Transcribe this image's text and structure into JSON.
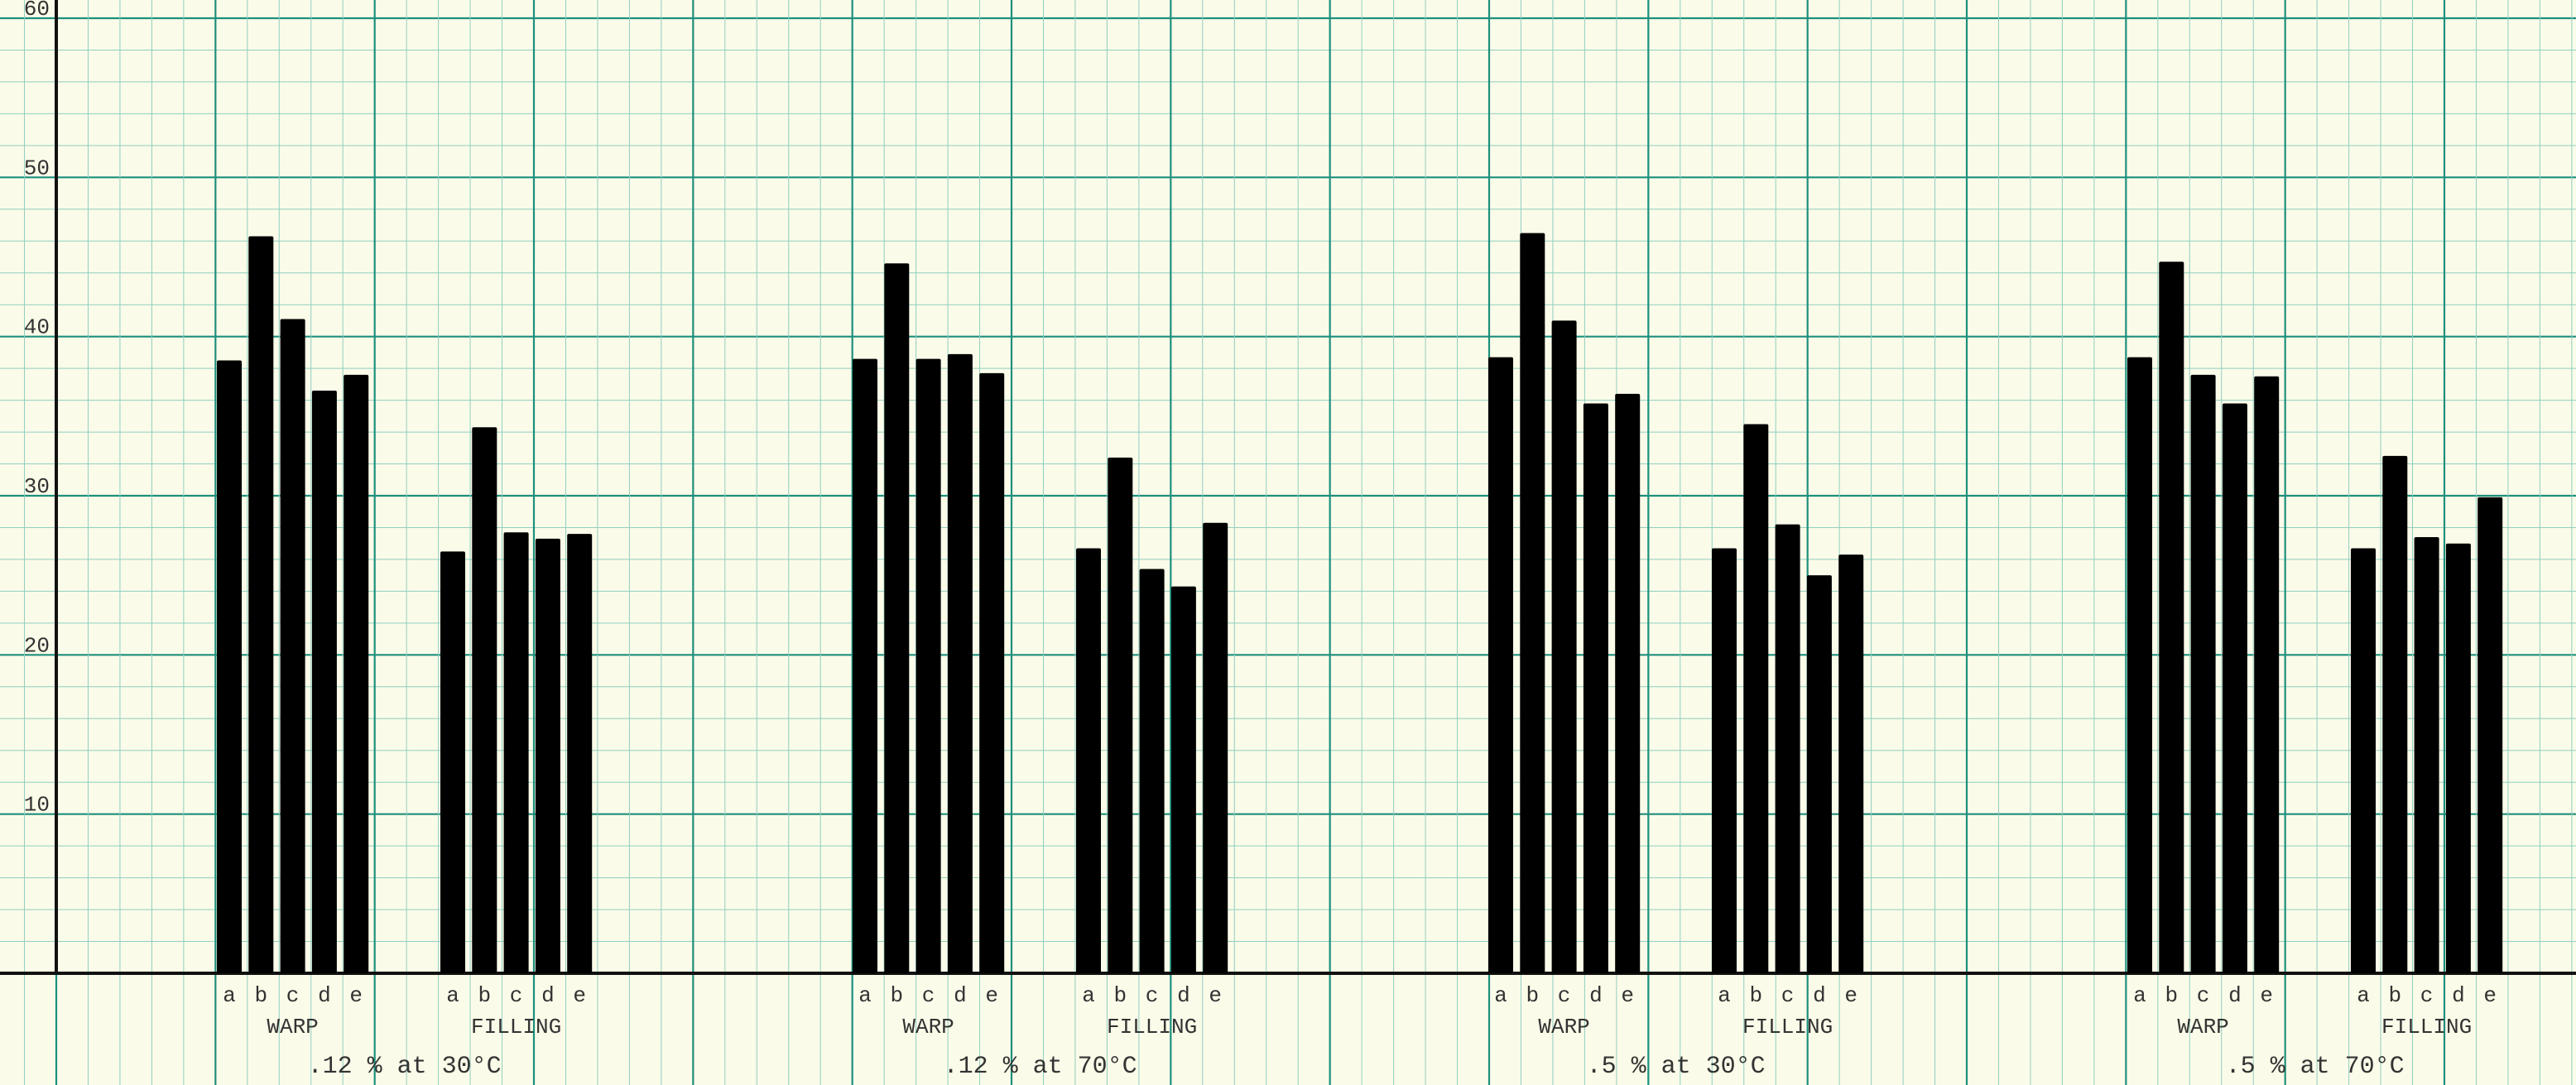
{
  "chart_data": {
    "type": "bar",
    "title": "",
    "xlabel": "",
    "ylabel": "",
    "ylim": [
      0,
      60
    ],
    "y_ticks": [
      "10",
      "20",
      "30",
      "40",
      "50",
      "60"
    ],
    "grid": true,
    "colors": {
      "bar": "#000000",
      "grid_minor": "#8fcfc0",
      "grid_major": "#1d8f7d",
      "paper": "#fbfbe9",
      "axis": "#111111"
    },
    "groups": [
      {
        "label": ".12 % at 30°C",
        "subgroups": [
          {
            "label": "WARP",
            "categories": [
              "a",
              "b",
              "c",
              "d",
              "e"
            ],
            "values": [
              38.5,
              46.3,
              41.1,
              36.6,
              37.6
            ]
          },
          {
            "label": "FILLING",
            "categories": [
              "a",
              "b",
              "c",
              "d",
              "e"
            ],
            "values": [
              26.5,
              34.3,
              27.7,
              27.3,
              27.6
            ]
          }
        ]
      },
      {
        "label": ".12 % at 70°C",
        "subgroups": [
          {
            "label": "WARP",
            "categories": [
              "a",
              "b",
              "c",
              "d",
              "e"
            ],
            "values": [
              38.6,
              44.6,
              38.6,
              38.9,
              37.7
            ]
          },
          {
            "label": "FILLING",
            "categories": [
              "a",
              "b",
              "c",
              "d",
              "e"
            ],
            "values": [
              26.7,
              32.4,
              25.4,
              24.3,
              28.3
            ]
          }
        ]
      },
      {
        "label": ".5 % at 30°C",
        "subgroups": [
          {
            "label": "WARP",
            "categories": [
              "a",
              "b",
              "c",
              "d",
              "e"
            ],
            "values": [
              38.7,
              46.5,
              41.0,
              35.8,
              36.4
            ]
          },
          {
            "label": "FILLING",
            "categories": [
              "a",
              "b",
              "c",
              "d",
              "e"
            ],
            "values": [
              26.7,
              34.5,
              28.2,
              25.0,
              26.3
            ]
          }
        ]
      },
      {
        "label": ".5 % at 70°C",
        "subgroups": [
          {
            "label": "WARP",
            "categories": [
              "a",
              "b",
              "c",
              "d",
              "e"
            ],
            "values": [
              38.7,
              44.7,
              37.6,
              35.8,
              37.5
            ]
          },
          {
            "label": "FILLING",
            "categories": [
              "a",
              "b",
              "c",
              "d",
              "e"
            ],
            "values": [
              26.7,
              32.5,
              27.4,
              27.0,
              29.9
            ]
          }
        ]
      }
    ]
  }
}
